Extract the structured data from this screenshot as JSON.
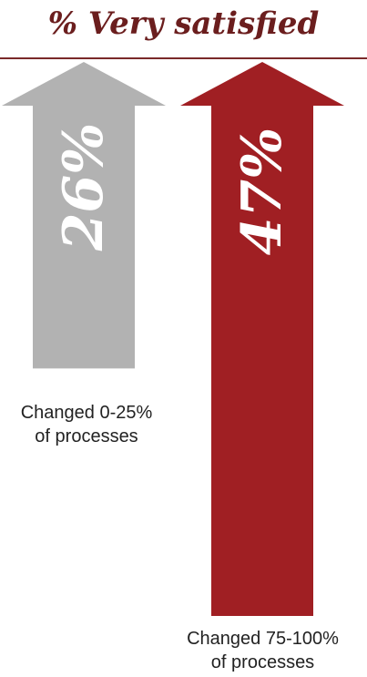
{
  "chart_data": {
    "type": "bar",
    "title": "% Very satisfied",
    "categories": [
      "Changed 0-25% of processes",
      "Changed 75-100% of processes"
    ],
    "category_lines": [
      [
        "Changed 0-25%",
        "of processes"
      ],
      [
        "Changed 75-100%",
        "of processes"
      ]
    ],
    "values": [
      26,
      47
    ],
    "value_labels": [
      "26%",
      "47%"
    ],
    "colors": [
      "#b2b2b2",
      "#a01f23"
    ],
    "xlabel": "",
    "ylabel": "",
    "ylim": [
      0,
      50
    ]
  }
}
